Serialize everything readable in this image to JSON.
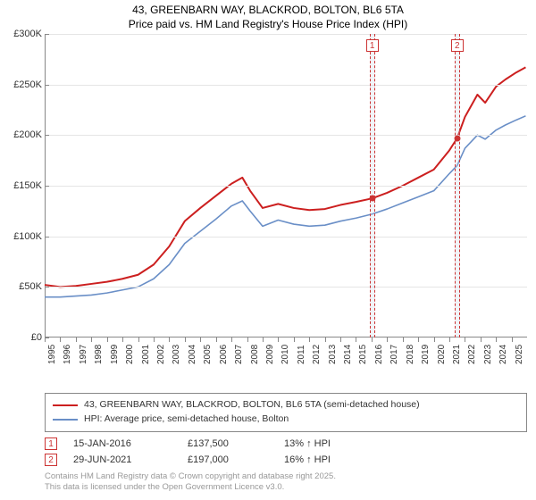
{
  "title": {
    "line1": "43, GREENBARN WAY, BLACKROD, BOLTON, BL6 5TA",
    "line2": "Price paid vs. HM Land Registry's House Price Index (HPI)"
  },
  "chart": {
    "type": "line",
    "background_color": "#ffffff",
    "grid_color": "#e5e5e5",
    "axis_color": "#888888",
    "label_fontsize": 11,
    "ylim": [
      0,
      300000
    ],
    "ytick_step": 50000,
    "y_ticks": [
      {
        "value": 0,
        "label": "£0"
      },
      {
        "value": 50000,
        "label": "£50K"
      },
      {
        "value": 100000,
        "label": "£100K"
      },
      {
        "value": 150000,
        "label": "£150K"
      },
      {
        "value": 200000,
        "label": "£200K"
      },
      {
        "value": 250000,
        "label": "£250K"
      },
      {
        "value": 300000,
        "label": "£300K"
      }
    ],
    "xlim": [
      1995,
      2025.99
    ],
    "x_ticks": [
      1995,
      1996,
      1997,
      1998,
      1999,
      2000,
      2001,
      2002,
      2003,
      2004,
      2005,
      2006,
      2007,
      2008,
      2009,
      2010,
      2011,
      2012,
      2013,
      2014,
      2015,
      2016,
      2017,
      2018,
      2019,
      2020,
      2021,
      2022,
      2023,
      2024,
      2025
    ],
    "series": [
      {
        "id": "price_paid",
        "label": "43, GREENBARN WAY, BLACKROD, BOLTON, BL6 5TA (semi-detached house)",
        "color": "#cc1f1f",
        "line_width": 2,
        "data": [
          [
            1995,
            52000
          ],
          [
            1996,
            50000
          ],
          [
            1997,
            51000
          ],
          [
            1998,
            53000
          ],
          [
            1999,
            55000
          ],
          [
            2000,
            58000
          ],
          [
            2001,
            62000
          ],
          [
            2002,
            72000
          ],
          [
            2003,
            90000
          ],
          [
            2004,
            115000
          ],
          [
            2005,
            128000
          ],
          [
            2006,
            140000
          ],
          [
            2007,
            152000
          ],
          [
            2007.7,
            158000
          ],
          [
            2008.2,
            145000
          ],
          [
            2009,
            128000
          ],
          [
            2010,
            132000
          ],
          [
            2011,
            128000
          ],
          [
            2012,
            126000
          ],
          [
            2013,
            127000
          ],
          [
            2014,
            131000
          ],
          [
            2015,
            134000
          ],
          [
            2016.04,
            137500
          ],
          [
            2017,
            143000
          ],
          [
            2018,
            150000
          ],
          [
            2019,
            158000
          ],
          [
            2020,
            166000
          ],
          [
            2021,
            185000
          ],
          [
            2021.5,
            197000
          ],
          [
            2022,
            218000
          ],
          [
            2022.8,
            240000
          ],
          [
            2023.3,
            232000
          ],
          [
            2024,
            248000
          ],
          [
            2024.6,
            255000
          ],
          [
            2025.3,
            262000
          ],
          [
            2025.9,
            267000
          ]
        ]
      },
      {
        "id": "hpi",
        "label": "HPI: Average price, semi-detached house, Bolton",
        "color": "#6a8fc7",
        "line_width": 1.6,
        "data": [
          [
            1995,
            40000
          ],
          [
            1996,
            40000
          ],
          [
            1997,
            41000
          ],
          [
            1998,
            42000
          ],
          [
            1999,
            44000
          ],
          [
            2000,
            47000
          ],
          [
            2001,
            50000
          ],
          [
            2002,
            58000
          ],
          [
            2003,
            72000
          ],
          [
            2004,
            93000
          ],
          [
            2005,
            105000
          ],
          [
            2006,
            117000
          ],
          [
            2007,
            130000
          ],
          [
            2007.7,
            135000
          ],
          [
            2008.2,
            125000
          ],
          [
            2009,
            110000
          ],
          [
            2010,
            116000
          ],
          [
            2011,
            112000
          ],
          [
            2012,
            110000
          ],
          [
            2013,
            111000
          ],
          [
            2014,
            115000
          ],
          [
            2015,
            118000
          ],
          [
            2016.04,
            122000
          ],
          [
            2017,
            127000
          ],
          [
            2018,
            133000
          ],
          [
            2019,
            139000
          ],
          [
            2020,
            145000
          ],
          [
            2021,
            162000
          ],
          [
            2021.5,
            170000
          ],
          [
            2022,
            187000
          ],
          [
            2022.8,
            200000
          ],
          [
            2023.3,
            196000
          ],
          [
            2024,
            205000
          ],
          [
            2024.6,
            210000
          ],
          [
            2025.3,
            215000
          ],
          [
            2025.9,
            219000
          ]
        ]
      }
    ],
    "markers": [
      {
        "num": "1",
        "x": 2016.04,
        "y": 137500,
        "band_width_years": 0.35
      },
      {
        "num": "2",
        "x": 2021.5,
        "y": 197000,
        "band_width_years": 0.35
      }
    ]
  },
  "legend": {
    "border_color": "#888888"
  },
  "transactions": [
    {
      "num": "1",
      "date": "15-JAN-2016",
      "price": "£137,500",
      "delta": "13% ↑ HPI"
    },
    {
      "num": "2",
      "date": "29-JUN-2021",
      "price": "£197,000",
      "delta": "16% ↑ HPI"
    }
  ],
  "footnote": {
    "line1": "Contains HM Land Registry data © Crown copyright and database right 2025.",
    "line2": "This data is licensed under the Open Government Licence v3.0."
  }
}
